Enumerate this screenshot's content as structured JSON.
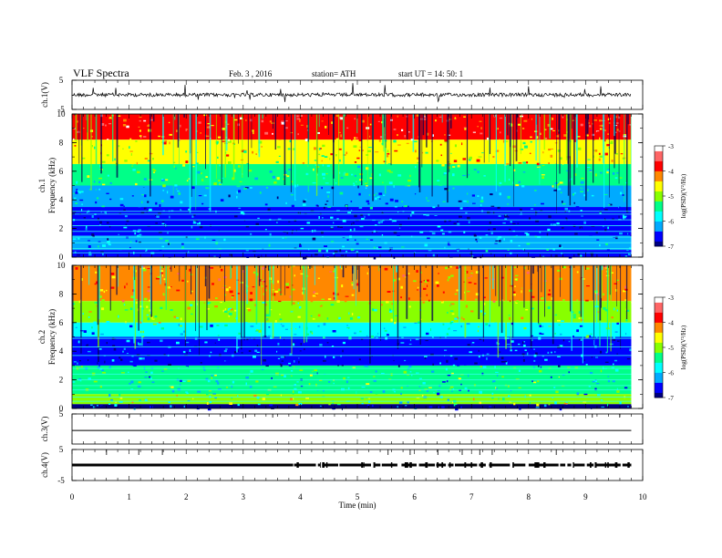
{
  "header": {
    "title": "VLF  Spectra",
    "date": "Feb. 3   , 2016",
    "station": "station= ATH",
    "start": "start  UT  =    14: 50: 1"
  },
  "chart_data": {
    "type": "heatmap",
    "x_axis": {
      "label": "Time  (min)",
      "range": [
        0,
        10
      ],
      "ticks": [
        "0",
        "1",
        "2",
        "3",
        "4",
        "5",
        "6",
        "7",
        "8",
        "9",
        "10"
      ]
    },
    "panels": [
      {
        "kind": "waveform",
        "ylabel": "ch.1(V)",
        "ylim": [
          -5,
          5
        ],
        "yticks": [
          "5",
          "-5"
        ],
        "baseline": 0,
        "data_end_min": 9.8
      },
      {
        "kind": "spectrogram",
        "ylabel_lines": [
          "ch.1",
          "Frequency  (kHz)"
        ],
        "ylim": [
          0,
          10
        ],
        "yticks": [
          "0",
          "2",
          "4",
          "6",
          "8",
          "10"
        ],
        "colorbar": {
          "label": "log(PSD)(V²/Hz)",
          "range": [
            -7,
            -3
          ],
          "ticks": [
            "-3",
            "-4",
            "-5",
            "-6",
            "-7"
          ],
          "colormap": [
            "#000080",
            "#0000ff",
            "#00aaff",
            "#00ffff",
            "#00ff88",
            "#88ff00",
            "#ffff00",
            "#ff8800",
            "#ff0000",
            "#ff6666",
            "#ffffff"
          ]
        },
        "bands": [
          {
            "fmin": 8.2,
            "fmax": 10,
            "level": -3.9
          },
          {
            "fmin": 6.5,
            "fmax": 8.2,
            "level": -4.6
          },
          {
            "fmin": 5.0,
            "fmax": 6.5,
            "level": -5.4
          },
          {
            "fmin": 3.5,
            "fmax": 5.0,
            "level": -6.1
          },
          {
            "fmin": 1.5,
            "fmax": 3.5,
            "level": -6.5
          },
          {
            "fmin": 0.5,
            "fmax": 1.5,
            "level": -6.2
          },
          {
            "fmin": 0,
            "fmax": 0.5,
            "level": -6.8
          }
        ],
        "lines_khz": [
          0.3,
          0.6,
          1.0,
          1.4,
          1.8,
          2.2,
          2.6,
          3.0,
          3.2
        ],
        "data_end_min": 9.8
      },
      {
        "kind": "spectrogram",
        "ylabel_lines": [
          "ch.2",
          "Frequency  (kHz)"
        ],
        "ylim": [
          0,
          10
        ],
        "yticks": [
          "0",
          "2",
          "4",
          "6",
          "8",
          "10"
        ],
        "colorbar": {
          "label": "log(PSD)(V²/Hz)",
          "range": [
            -7,
            -3
          ],
          "ticks": [
            "-3",
            "-4",
            "-5",
            "-6",
            "-7"
          ],
          "colormap": [
            "#000080",
            "#0000ff",
            "#00aaff",
            "#00ffff",
            "#00ff88",
            "#88ff00",
            "#ffff00",
            "#ff8800",
            "#ff0000",
            "#ff6666",
            "#ffffff"
          ]
        },
        "bands": [
          {
            "fmin": 7.5,
            "fmax": 10,
            "level": -4.3
          },
          {
            "fmin": 6.0,
            "fmax": 7.5,
            "level": -5.0
          },
          {
            "fmin": 5.0,
            "fmax": 6.0,
            "level": -5.8
          },
          {
            "fmin": 3.0,
            "fmax": 5.0,
            "level": -6.5
          },
          {
            "fmin": 1.0,
            "fmax": 3.0,
            "level": -5.6
          },
          {
            "fmin": 0.3,
            "fmax": 1.0,
            "level": -5.2
          },
          {
            "fmin": 0,
            "fmax": 0.3,
            "level": -6.9
          }
        ],
        "lines_khz": [
          0.5,
          0.8,
          1.3,
          1.6,
          2.0,
          2.4,
          2.8,
          3.7,
          4.3,
          4.9
        ],
        "data_end_min": 9.8
      },
      {
        "kind": "waveform",
        "ylabel": "ch.3(V)",
        "ylim": [
          -5,
          5
        ],
        "yticks": [
          "5"
        ],
        "baseline": -0.5,
        "data_end_min": 9.8
      },
      {
        "kind": "waveform",
        "ylabel": "ch.4(V)",
        "ylim": [
          -5,
          5
        ],
        "yticks": [
          "5",
          "-5"
        ],
        "baseline": 0,
        "data_end_min": 9.8
      }
    ]
  }
}
